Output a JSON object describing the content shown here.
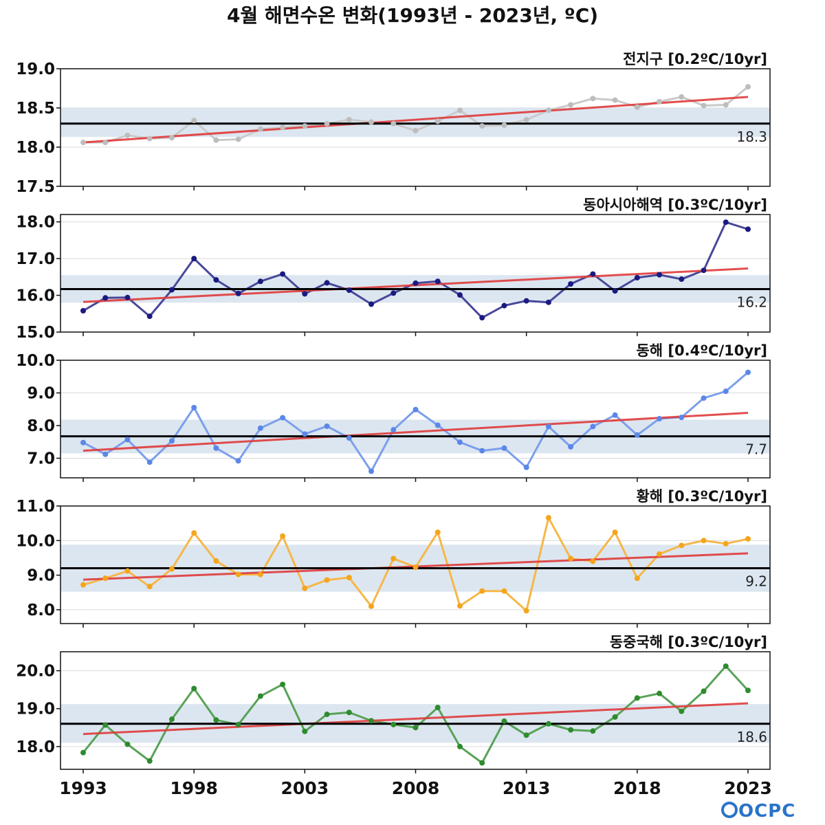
{
  "title": "4월 해면수온 변화(1993년 - 2023년, ºC)",
  "logo_text": "OCPC",
  "x_ticks": [
    1993,
    1998,
    2003,
    2008,
    2013,
    2018,
    2023
  ],
  "x_range": [
    1993,
    2023
  ],
  "colors": {
    "trend": "#e03b3b",
    "mean": "#000000",
    "band": "#dce6f0",
    "grid": "#d9d9d9"
  },
  "chart_data": [
    {
      "type": "line",
      "title": "전지구 [0.2ºC/10yr]",
      "series_color": "#bdbdbd",
      "ylim": [
        17.5,
        19.0
      ],
      "y_ticks": [
        17.5,
        18.0,
        18.5,
        19.0
      ],
      "mean": 18.3,
      "mean_label": "18.3",
      "band": [
        18.13,
        18.5
      ],
      "trend": [
        18.06,
        18.64
      ],
      "x": [
        1993,
        1994,
        1995,
        1996,
        1997,
        1998,
        1999,
        2000,
        2001,
        2002,
        2003,
        2004,
        2005,
        2006,
        2007,
        2008,
        2009,
        2010,
        2011,
        2012,
        2013,
        2014,
        2015,
        2016,
        2017,
        2018,
        2019,
        2020,
        2021,
        2022,
        2023
      ],
      "values": [
        18.06,
        18.06,
        18.15,
        18.11,
        18.12,
        18.34,
        18.09,
        18.1,
        18.23,
        18.25,
        18.27,
        18.3,
        18.35,
        18.32,
        18.3,
        18.21,
        18.33,
        18.47,
        18.27,
        18.28,
        18.35,
        18.47,
        18.54,
        18.62,
        18.6,
        18.51,
        18.58,
        18.64,
        18.53,
        18.54,
        18.77
      ]
    },
    {
      "type": "line",
      "title": "동아시아해역 [0.3ºC/10yr]",
      "series_color": "#1a1a80",
      "ylim": [
        15.0,
        18.2
      ],
      "y_ticks": [
        15.0,
        16.0,
        17.0,
        18.0
      ],
      "mean": 16.17,
      "mean_label": "16.2",
      "band": [
        15.8,
        16.55
      ],
      "trend": [
        15.82,
        16.73
      ],
      "x": [
        1993,
        1994,
        1995,
        1996,
        1997,
        1998,
        1999,
        2000,
        2001,
        2002,
        2003,
        2004,
        2005,
        2006,
        2007,
        2008,
        2009,
        2010,
        2011,
        2012,
        2013,
        2014,
        2015,
        2016,
        2017,
        2018,
        2019,
        2020,
        2021,
        2022,
        2023
      ],
      "values": [
        15.58,
        15.93,
        15.94,
        15.43,
        16.15,
        17.0,
        16.42,
        16.05,
        16.38,
        16.58,
        16.04,
        16.34,
        16.14,
        15.76,
        16.06,
        16.33,
        16.38,
        16.01,
        15.39,
        15.72,
        15.85,
        15.81,
        16.31,
        16.58,
        16.12,
        16.48,
        16.56,
        16.44,
        16.68,
        17.99,
        17.8
      ]
    },
    {
      "type": "line",
      "title": "동해 [0.4ºC/10yr]",
      "series_color": "#5b87e8",
      "ylim": [
        6.4,
        10.0
      ],
      "y_ticks": [
        7.0,
        8.0,
        9.0,
        10.0
      ],
      "mean": 7.67,
      "mean_label": "7.7",
      "band": [
        7.15,
        8.18
      ],
      "trend": [
        7.23,
        8.39
      ],
      "x": [
        1993,
        1994,
        1995,
        1996,
        1997,
        1998,
        1999,
        2000,
        2001,
        2002,
        2003,
        2004,
        2005,
        2006,
        2007,
        2008,
        2009,
        2010,
        2011,
        2012,
        2013,
        2014,
        2015,
        2016,
        2017,
        2018,
        2019,
        2020,
        2021,
        2022,
        2023
      ],
      "values": [
        7.48,
        7.12,
        7.57,
        6.88,
        7.53,
        8.55,
        7.31,
        6.92,
        7.92,
        8.24,
        7.74,
        7.98,
        7.62,
        6.6,
        7.87,
        8.49,
        8.01,
        7.49,
        7.23,
        7.31,
        6.72,
        7.97,
        7.35,
        7.97,
        8.32,
        7.71,
        8.21,
        8.25,
        8.84,
        9.05,
        9.63
      ]
    },
    {
      "type": "line",
      "title": "황해 [0.3ºC/10yr]",
      "series_color": "#f4a51c",
      "ylim": [
        7.6,
        11.0
      ],
      "y_ticks": [
        8.0,
        9.0,
        10.0,
        11.0
      ],
      "mean": 9.2,
      "mean_label": "9.2",
      "band": [
        8.52,
        9.88
      ],
      "trend": [
        8.87,
        9.63
      ],
      "x": [
        1993,
        1994,
        1995,
        1996,
        1997,
        1998,
        1999,
        2000,
        2001,
        2002,
        2003,
        2004,
        2005,
        2006,
        2007,
        2008,
        2009,
        2010,
        2011,
        2012,
        2013,
        2014,
        2015,
        2016,
        2017,
        2018,
        2019,
        2020,
        2021,
        2022,
        2023
      ],
      "values": [
        8.72,
        8.91,
        9.12,
        8.67,
        9.18,
        10.22,
        9.41,
        9.02,
        9.02,
        10.13,
        8.62,
        8.86,
        8.93,
        8.1,
        9.48,
        9.23,
        10.24,
        8.11,
        8.54,
        8.54,
        7.97,
        10.66,
        9.48,
        9.4,
        10.24,
        8.91,
        9.61,
        9.86,
        10.0,
        9.91,
        10.05
      ]
    },
    {
      "type": "line",
      "title": "동중국해 [0.3ºC/10yr]",
      "series_color": "#2e8b2e",
      "ylim": [
        17.4,
        20.5
      ],
      "y_ticks": [
        18.0,
        19.0,
        20.0
      ],
      "mean": 18.6,
      "mean_label": "18.6",
      "band": [
        18.1,
        19.12
      ],
      "trend": [
        18.33,
        19.14
      ],
      "x": [
        1993,
        1994,
        1995,
        1996,
        1997,
        1998,
        1999,
        2000,
        2001,
        2002,
        2003,
        2004,
        2005,
        2006,
        2007,
        2008,
        2009,
        2010,
        2011,
        2012,
        2013,
        2014,
        2015,
        2016,
        2017,
        2018,
        2019,
        2020,
        2021,
        2022,
        2023
      ],
      "values": [
        17.84,
        18.57,
        18.06,
        17.62,
        18.72,
        19.53,
        18.7,
        18.58,
        19.33,
        19.64,
        18.4,
        18.85,
        18.9,
        18.68,
        18.58,
        18.5,
        19.03,
        18.0,
        17.57,
        18.67,
        18.3,
        18.6,
        18.44,
        18.41,
        18.78,
        19.28,
        19.4,
        18.93,
        19.46,
        20.12,
        19.48
      ]
    }
  ]
}
